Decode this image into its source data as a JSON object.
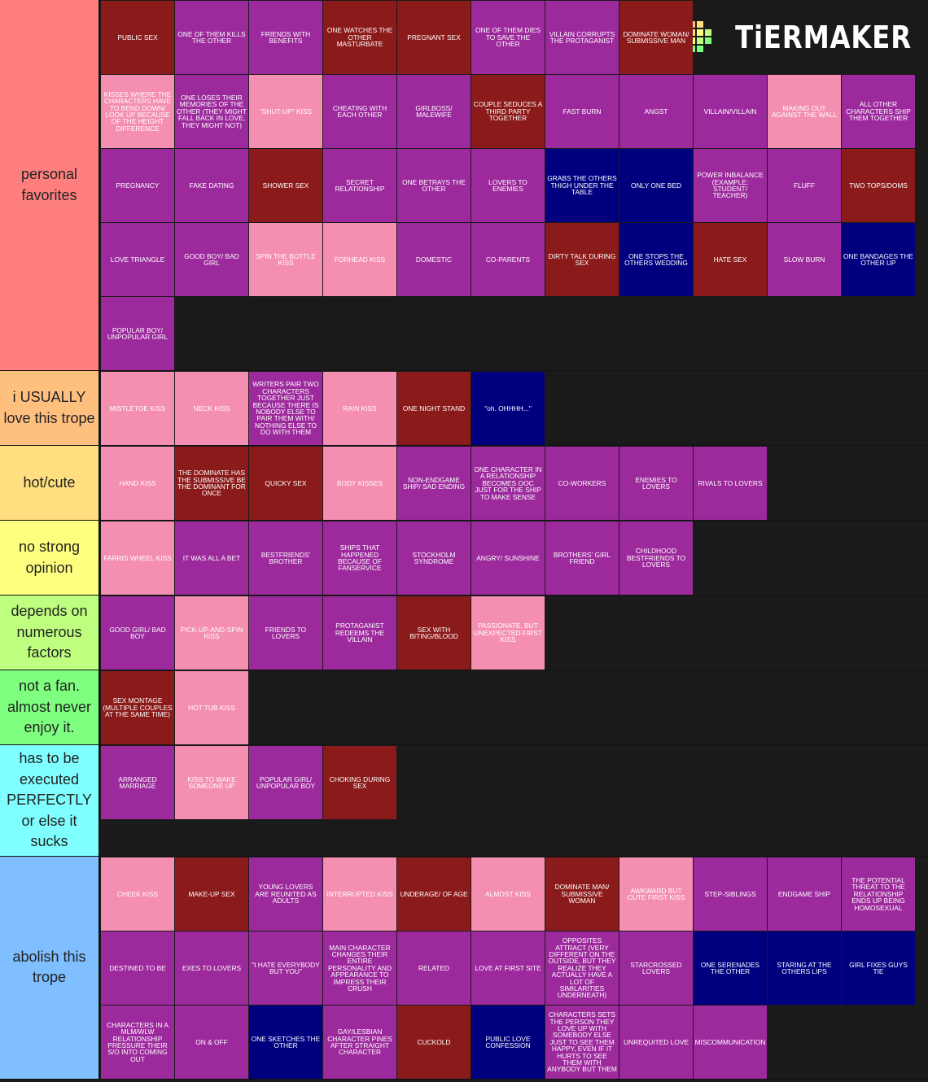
{
  "logo": "TiERMAKER",
  "tiers": [
    {
      "label": "personal favorites",
      "color": "#ff7f7f",
      "items": [
        {
          "text": "PUBLIC SEX",
          "color": "#8b1a1a"
        },
        {
          "text": "ONE OF THEM KILLS THE OTHER",
          "color": "#9c2a9c"
        },
        {
          "text": "FRIENDS WITH BENEFITS",
          "color": "#9c2a9c"
        },
        {
          "text": "ONE WATCHES THE OTHER MASTURBATE",
          "color": "#8b1a1a"
        },
        {
          "text": "PREGNANT SEX",
          "color": "#8b1a1a"
        },
        {
          "text": "ONE OF THEM DIES TO SAVE THE OTHER",
          "color": "#9c2a9c"
        },
        {
          "text": "VILLAIN CORRUPTS THE PROTAGANIST",
          "color": "#9c2a9c"
        },
        {
          "text": "DOMINATE WOMAN/ SUBMISSIVE MAN",
          "color": "#8b1a1a"
        },
        {
          "text": "KISSES WHERE THE CHARACTERS HAVE TO BEND DOWN/ LOOK UP BECAUSE OF THE HEIGHT DIFFERENCE",
          "color": "#f48fb1"
        },
        {
          "text": "ONE LOSES THEIR MEMORIES OF THE OTHER (THEY MIGHT FALL BACK IN LOVE, THEY MIGHT NOT)",
          "color": "#9c2a9c"
        },
        {
          "text": "\"SHUT-UP\" KISS",
          "color": "#f48fb1"
        },
        {
          "text": "CHEATING WITH EACH OTHER",
          "color": "#9c2a9c"
        },
        {
          "text": "GIRLBOSS/ MALEWIFE",
          "color": "#9c2a9c"
        },
        {
          "text": "COUPLE SEDUCES A THIRD PARTY TOGETHER",
          "color": "#8b1a1a"
        },
        {
          "text": "FAST BURN",
          "color": "#9c2a9c"
        },
        {
          "text": "ANGST",
          "color": "#9c2a9c"
        },
        {
          "text": "VILLAIN/VILLAIN",
          "color": "#9c2a9c"
        },
        {
          "text": "MAKING OUT AGAINST THE WALL",
          "color": "#f48fb1"
        },
        {
          "text": "ALL OTHER CHARACTERS SHIP THEM TOGETHER",
          "color": "#9c2a9c"
        },
        {
          "text": "PREGNANCY",
          "color": "#9c2a9c"
        },
        {
          "text": "FAKE DATING",
          "color": "#9c2a9c"
        },
        {
          "text": "SHOWER SEX",
          "color": "#8b1a1a"
        },
        {
          "text": "SECRET RELATIONSHIP",
          "color": "#9c2a9c"
        },
        {
          "text": "ONE BETRAYS THE OTHER",
          "color": "#9c2a9c"
        },
        {
          "text": "LOVERS TO ENEMIES",
          "color": "#9c2a9c"
        },
        {
          "text": "GRABS THE OTHERS THIGH UNDER THE TABLE",
          "color": "#00007f"
        },
        {
          "text": "ONLY ONE BED",
          "color": "#00007f"
        },
        {
          "text": "POWER INBALANCE (EXAMPLE: STUDENT/ TEACHER)",
          "color": "#9c2a9c"
        },
        {
          "text": "FLUFF",
          "color": "#9c2a9c"
        },
        {
          "text": "TWO TOPS/DOMS",
          "color": "#8b1a1a"
        },
        {
          "text": "LOVE TRIANGLE",
          "color": "#9c2a9c"
        },
        {
          "text": "GOOD BOY/ BAD GIRL",
          "color": "#9c2a9c"
        },
        {
          "text": "SPIN THE BOTTLE KISS",
          "color": "#f48fb1"
        },
        {
          "text": "FORHEAD KISS",
          "color": "#f48fb1"
        },
        {
          "text": "DOMESTIC",
          "color": "#9c2a9c"
        },
        {
          "text": "CO-PARENTS",
          "color": "#9c2a9c"
        },
        {
          "text": "DIRTY TALK DURING SEX",
          "color": "#8b1a1a"
        },
        {
          "text": "ONE STOPS THE OTHERS WEDDING",
          "color": "#00007f"
        },
        {
          "text": "HATE SEX",
          "color": "#8b1a1a"
        },
        {
          "text": "SLOW BURN",
          "color": "#9c2a9c"
        },
        {
          "text": "ONE BANDAGES THE OTHER UP",
          "color": "#00007f"
        },
        {
          "text": "POPULAR BOY/ UNPOPULAR GIRL",
          "color": "#9c2a9c"
        }
      ]
    },
    {
      "label": "i USUALLY love this trope",
      "color": "#ffbf7f",
      "items": [
        {
          "text": "MISTLETOE KISS",
          "color": "#f48fb1"
        },
        {
          "text": "NECK KISS",
          "color": "#f48fb1"
        },
        {
          "text": "WRITERS PAIR TWO CHARACTERS TOGETHER JUST BECAUSE THERE IS NOBODY ELSE TO PAIR THEM WITH/ NOTHING ELSE TO DO WITH THEM",
          "color": "#9c2a9c"
        },
        {
          "text": "RAIN KISS",
          "color": "#f48fb1"
        },
        {
          "text": "ONE NIGHT STAND",
          "color": "#8b1a1a"
        },
        {
          "text": "\"oh. OHHHH...\"",
          "color": "#00007f"
        }
      ]
    },
    {
      "label": "hot/cute",
      "color": "#ffdf7f",
      "items": [
        {
          "text": "HAND KISS",
          "color": "#f48fb1"
        },
        {
          "text": "THE DOMINATE HAS THE SUBMISSIVE BE THE DOMINANT FOR ONCE",
          "color": "#8b1a1a"
        },
        {
          "text": "QUICKY SEX",
          "color": "#8b1a1a"
        },
        {
          "text": "BODY KISSES",
          "color": "#f48fb1"
        },
        {
          "text": "NON-ENDGAME SHIP/ SAD ENDING",
          "color": "#9c2a9c"
        },
        {
          "text": "ONE CHARACTER IN A RELATIONSHIP BECOMES OOC JUST FOR THE SHIP TO MAKE SENSE",
          "color": "#9c2a9c"
        },
        {
          "text": "CO-WORKERS",
          "color": "#9c2a9c"
        },
        {
          "text": "ENEMIES TO LOVERS",
          "color": "#9c2a9c"
        },
        {
          "text": "RIVALS TO LOVERS",
          "color": "#9c2a9c"
        }
      ]
    },
    {
      "label": "no strong opinion",
      "color": "#ffff7f",
      "items": [
        {
          "text": "FARRIS WHEEL KISS",
          "color": "#f48fb1"
        },
        {
          "text": "IT WAS ALL A BET",
          "color": "#9c2a9c"
        },
        {
          "text": "BESTFRIENDS' BROTHER",
          "color": "#9c2a9c"
        },
        {
          "text": "SHIPS THAT HAPPENED BECAUSE OF FANSERVICE",
          "color": "#9c2a9c"
        },
        {
          "text": "STOCKHOLM SYNDROME",
          "color": "#9c2a9c"
        },
        {
          "text": "ANGRY/ SUNSHINE",
          "color": "#9c2a9c"
        },
        {
          "text": "BROTHERS' GIRL FRIEND",
          "color": "#9c2a9c"
        },
        {
          "text": "CHILDHOOD BESTFRIENDS TO LOVERS",
          "color": "#9c2a9c"
        }
      ]
    },
    {
      "label": "depends on numerous factors",
      "color": "#bfff7f",
      "items": [
        {
          "text": "GOOD GIRL/ BAD BOY",
          "color": "#9c2a9c"
        },
        {
          "text": "PICK-UP-AND-SPIN KISS",
          "color": "#f48fb1"
        },
        {
          "text": "FRIENDS TO LOVERS",
          "color": "#9c2a9c"
        },
        {
          "text": "PROTAGANIST REDEEMS THE VILLAIN",
          "color": "#9c2a9c"
        },
        {
          "text": "SEX WITH BITING/BLOOD",
          "color": "#8b1a1a"
        },
        {
          "text": "PASSIONATE, BUT UNEXPECTED FIRST KISS",
          "color": "#f48fb1"
        }
      ]
    },
    {
      "label": "not a fan. almost never enjoy it.",
      "color": "#7fff7f",
      "items": [
        {
          "text": "SEX MONTAGE (MULTIPLE COUPLES AT THE SAME TIME)",
          "color": "#8b1a1a"
        },
        {
          "text": "HOT TUB KISS",
          "color": "#f48fb1"
        }
      ]
    },
    {
      "label": "has to be executed PERFECTLY or else it sucks",
      "color": "#7fffff",
      "items": [
        {
          "text": "ARRANGED MARRIAGE",
          "color": "#9c2a9c"
        },
        {
          "text": "KISS TO WAKE SOMEONE UP",
          "color": "#f48fb1"
        },
        {
          "text": "POPULAR GIRL/ UNPOPULAR BOY",
          "color": "#9c2a9c"
        },
        {
          "text": "CHOKING DURING SEX",
          "color": "#8b1a1a"
        }
      ]
    },
    {
      "label": "abolish this trope",
      "color": "#7fbfff",
      "items": [
        {
          "text": "CHEEK KISS",
          "color": "#f48fb1"
        },
        {
          "text": "MAKE-UP SEX",
          "color": "#8b1a1a"
        },
        {
          "text": "YOUNG LOVERS ARE REUNITED AS ADULTS",
          "color": "#9c2a9c"
        },
        {
          "text": "INTERRUPTED KISS",
          "color": "#f48fb1"
        },
        {
          "text": "UNDERAGE/ OF AGE",
          "color": "#8b1a1a"
        },
        {
          "text": "ALMOST KISS",
          "color": "#f48fb1"
        },
        {
          "text": "DOMINATE MAN/ SUBMISSIVE WOMAN",
          "color": "#8b1a1a"
        },
        {
          "text": "AWKWARD BUT CUTE FIRST KISS",
          "color": "#f48fb1"
        },
        {
          "text": "STEP-SIBLINGS",
          "color": "#9c2a9c"
        },
        {
          "text": "ENDGAME SHIP",
          "color": "#9c2a9c"
        },
        {
          "text": "THE POTENTIAL THREAT TO THE RELATIONSHIP ENDS UP BEING HOMOSEXUAL",
          "color": "#9c2a9c"
        },
        {
          "text": "DESTINED TO BE",
          "color": "#9c2a9c"
        },
        {
          "text": "EXES TO LOVERS",
          "color": "#9c2a9c"
        },
        {
          "text": "\"I HATE EVERYBODY BUT YOU\"",
          "color": "#9c2a9c"
        },
        {
          "text": "MAIN CHARACTER CHANGES THEIR ENTIRE PERSONALITY AND APPEARANCE TO IMPRESS THEIR CRUSH",
          "color": "#9c2a9c"
        },
        {
          "text": "RELATED",
          "color": "#9c2a9c"
        },
        {
          "text": "LOVE AT FIRST SITE",
          "color": "#9c2a9c"
        },
        {
          "text": "OPPOSITES ATTRACT (VERY DIFFERENT ON THE OUTSIDE, BUT THEY REALIZE THEY ACTUALLY HAVE A LOT OF SIMILARITIES UNDERNEATH)",
          "color": "#9c2a9c"
        },
        {
          "text": "STARCROSSED LOVERS",
          "color": "#9c2a9c"
        },
        {
          "text": "ONE SERENADES THE OTHER",
          "color": "#00007f"
        },
        {
          "text": "STARING AT THE OTHERS LIPS",
          "color": "#00007f"
        },
        {
          "text": "GIRL FIXES GUYS TIE",
          "color": "#00007f"
        },
        {
          "text": "CHARACTERS IN A MLM/WLW RELATIONSHIP PRESSURE THEIR S/O INTO COMING OUT",
          "color": "#9c2a9c"
        },
        {
          "text": "ON & OFF",
          "color": "#9c2a9c"
        },
        {
          "text": "ONE SKETCHES THE OTHER",
          "color": "#00007f"
        },
        {
          "text": "GAY/LESBIAN CHARACTER PINES AFTER STRAIGHT CHARACTER",
          "color": "#9c2a9c"
        },
        {
          "text": "CUCKOLD",
          "color": "#8b1a1a"
        },
        {
          "text": "PUBLIC LOVE CONFESSION",
          "color": "#00007f"
        },
        {
          "text": "CHARACTERS SETS THE PERSON THEY LOVE UP WITH SOMEBODY ELSE JUST TO SEE THEM HAPPY, EVEN IF IT HURTS TO SEE THEM WITH ANYBODY BUT THEM",
          "color": "#9c2a9c"
        },
        {
          "text": "UNREQUITED LOVE",
          "color": "#9c2a9c"
        },
        {
          "text": "MISCOMMUNICATION",
          "color": "#9c2a9c"
        }
      ]
    }
  ]
}
